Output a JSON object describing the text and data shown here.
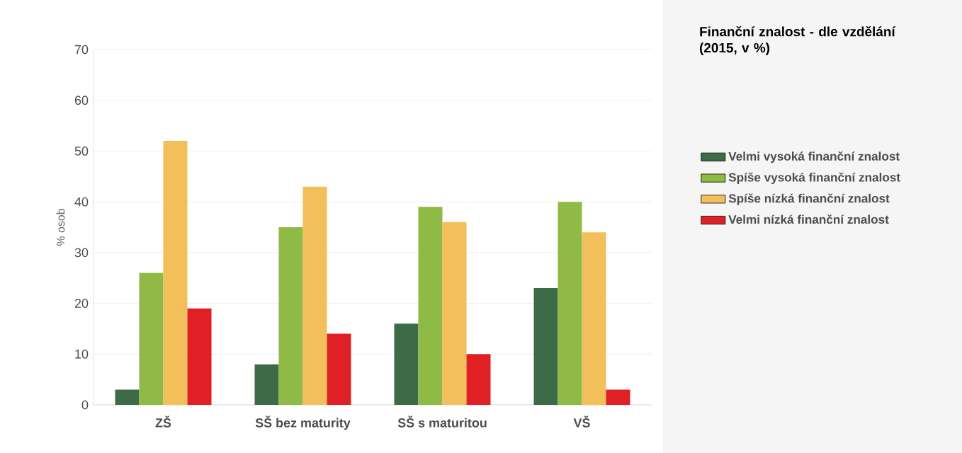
{
  "chart_data": {
    "type": "bar",
    "title": "Finanční znalost - dle vzdělání (2015, v %)",
    "ylabel": "% osob",
    "categories": [
      "ZŠ",
      "SŠ bez maturity",
      "SŠ s maturitou",
      "VŠ"
    ],
    "series": [
      {
        "name": "Velmi vysoká finanční znalost",
        "color": "#3e6b47",
        "values": [
          3,
          8,
          16,
          23
        ]
      },
      {
        "name": "Spíše vysoká finanční znalost",
        "color": "#8fba45",
        "values": [
          26,
          35,
          39,
          40
        ]
      },
      {
        "name": "Spíše nízká finanční znalost",
        "color": "#f2bf5a",
        "values": [
          52,
          43,
          36,
          34
        ]
      },
      {
        "name": "Velmi nízká finanční znalost",
        "color": "#e02024",
        "values": [
          19,
          14,
          10,
          3
        ]
      }
    ],
    "ylim": [
      0,
      70
    ],
    "yticks": [
      0,
      10,
      20,
      30,
      40,
      50,
      60,
      70
    ],
    "grid": "y",
    "legend": "right"
  }
}
